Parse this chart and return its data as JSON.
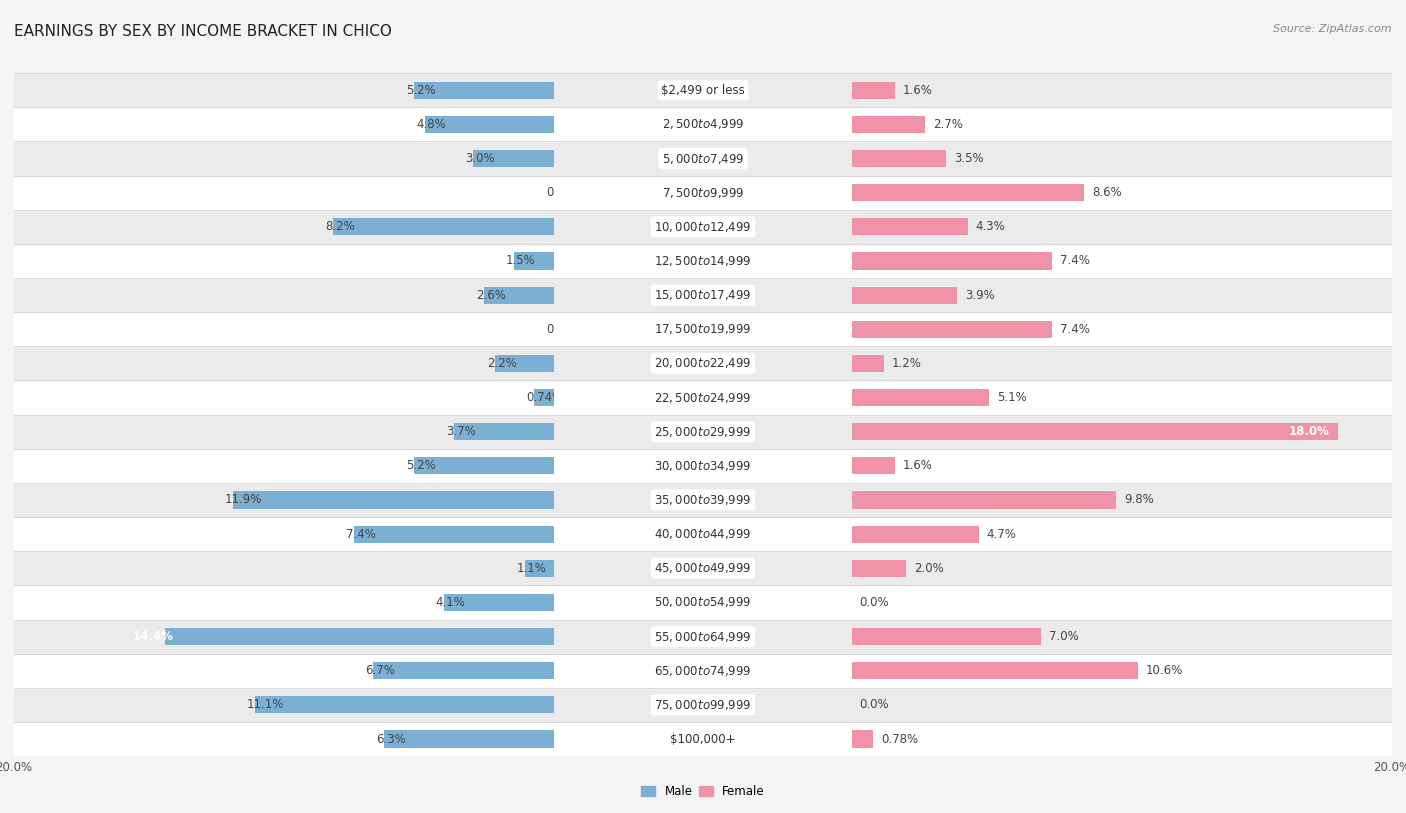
{
  "title": "EARNINGS BY SEX BY INCOME BRACKET IN CHICO",
  "source": "Source: ZipAtlas.com",
  "categories": [
    "$2,499 or less",
    "$2,500 to $4,999",
    "$5,000 to $7,499",
    "$7,500 to $9,999",
    "$10,000 to $12,499",
    "$12,500 to $14,999",
    "$15,000 to $17,499",
    "$17,500 to $19,999",
    "$20,000 to $22,499",
    "$22,500 to $24,999",
    "$25,000 to $29,999",
    "$30,000 to $34,999",
    "$35,000 to $39,999",
    "$40,000 to $44,999",
    "$45,000 to $49,999",
    "$50,000 to $54,999",
    "$55,000 to $64,999",
    "$65,000 to $74,999",
    "$75,000 to $99,999",
    "$100,000+"
  ],
  "male_values": [
    5.2,
    4.8,
    3.0,
    0.0,
    8.2,
    1.5,
    2.6,
    0.0,
    2.2,
    0.74,
    3.7,
    5.2,
    11.9,
    7.4,
    1.1,
    4.1,
    14.4,
    6.7,
    11.1,
    6.3
  ],
  "female_values": [
    1.6,
    2.7,
    3.5,
    8.6,
    4.3,
    7.4,
    3.9,
    7.4,
    1.2,
    5.1,
    18.0,
    1.6,
    9.8,
    4.7,
    2.0,
    0.0,
    7.0,
    10.6,
    0.0,
    0.78
  ],
  "male_color": "#7bafd4",
  "female_color": "#f093a8",
  "male_label": "Male",
  "female_label": "Female",
  "xlim": 20.0,
  "bg_light": "#f5f5f5",
  "bg_dark": "#e8e8e8",
  "title_fontsize": 11,
  "label_fontsize": 8.5,
  "tick_fontsize": 8.5,
  "value_fontsize": 8.5
}
